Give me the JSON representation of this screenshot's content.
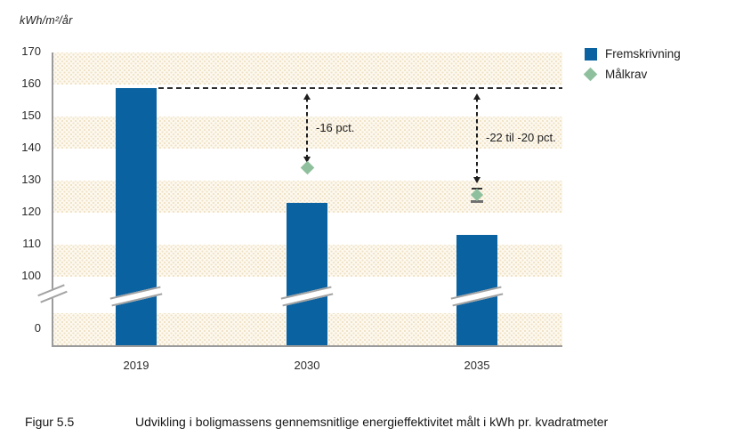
{
  "meta": {
    "figure_label": "Figur 5.5",
    "caption": "Udvikling i boligmassens gennemsnitlige energieffektivitet målt i kWh pr. kvadratmeter"
  },
  "chart_data": {
    "type": "bar",
    "title": "Udvikling i boligmassens gennemsnitlige energieffektivitet målt i kWh pr. kvadratmeter",
    "ylabel": "kWh/m²/år",
    "xlabel": "",
    "categories": [
      "2019",
      "2030",
      "2035"
    ],
    "series": [
      {
        "name": "Fremskrivning",
        "type": "bar",
        "color": "#0b62a0",
        "values": [
          159,
          123,
          113
        ]
      },
      {
        "name": "Målkrav",
        "type": "point-diamond",
        "color": "#8fc09e",
        "values": [
          null,
          134,
          125.5
        ],
        "ranges": [
          null,
          null,
          [
            124,
            127.5
          ]
        ]
      }
    ],
    "reference_line": {
      "value": 159,
      "style": "dashed",
      "from_category": "2019",
      "color": "#2e2e2e"
    },
    "annotations": [
      {
        "category": "2030",
        "label": "-16 pct.",
        "from": 159,
        "to": 134
      },
      {
        "category": "2035",
        "label": "-22 til -20 pct.",
        "from": 159,
        "to": 127.5
      }
    ],
    "y_ticks": [
      170,
      160,
      150,
      140,
      130,
      120,
      110,
      100,
      0
    ],
    "ylim": [
      0,
      170
    ],
    "axis_break": true,
    "grid": "alternating-dotted-bands",
    "band_color": "#fdf9f0",
    "axis_color": "#9b9b9b",
    "legend_position": "top-right"
  }
}
